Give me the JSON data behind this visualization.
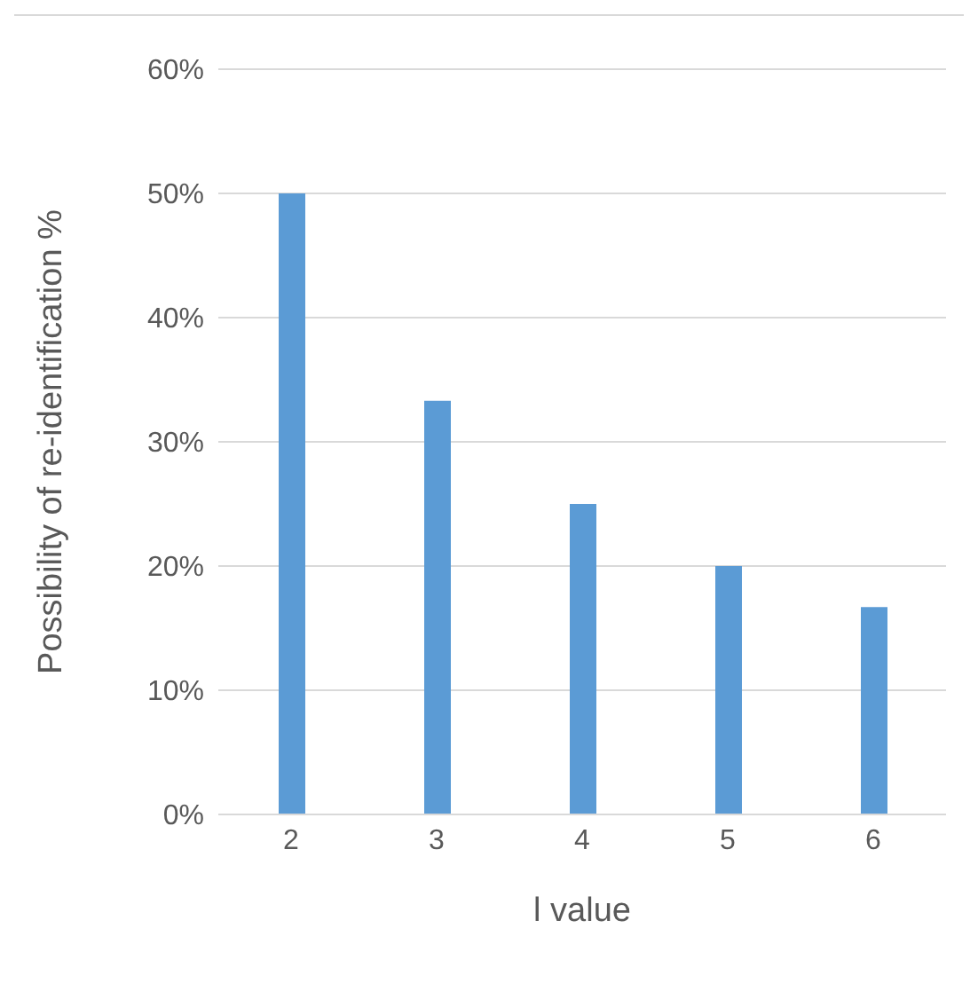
{
  "chart_data": {
    "type": "bar",
    "xlabel": "l value",
    "ylabel": "Possibility of re-identification %",
    "categories": [
      "2",
      "3",
      "4",
      "5",
      "6"
    ],
    "series": [
      {
        "color": "#5b9bd5",
        "values": [
          50,
          33.3,
          25,
          20,
          16.7
        ]
      }
    ],
    "ylim": [
      0,
      60
    ],
    "yticks": [
      {
        "value": 0,
        "label": "0%"
      },
      {
        "value": 10,
        "label": "10%"
      },
      {
        "value": 20,
        "label": "20%"
      },
      {
        "value": 30,
        "label": "30%"
      },
      {
        "value": 40,
        "label": "40%"
      },
      {
        "value": 50,
        "label": "50%"
      },
      {
        "value": 60,
        "label": "60%"
      }
    ],
    "grid": "y",
    "legend": false
  }
}
